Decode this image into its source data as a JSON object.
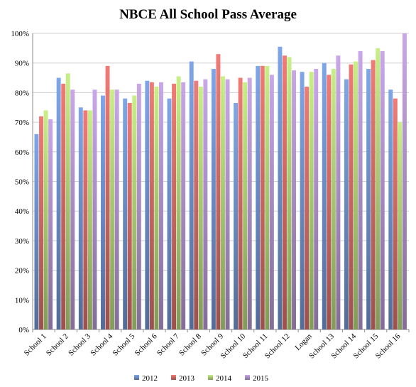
{
  "chart_data": {
    "type": "bar",
    "title": "NBCE All School Pass Average",
    "xlabel": "",
    "ylabel": "",
    "ylim": [
      0,
      100
    ],
    "y_ticks": [
      "0%",
      "10%",
      "20%",
      "30%",
      "40%",
      "50%",
      "60%",
      "70%",
      "80%",
      "90%",
      "100%"
    ],
    "grid": true,
    "legend_position": "bottom",
    "categories": [
      "School 1",
      "School 2",
      "School 3",
      "School 4",
      "School 5",
      "School 6",
      "School 7",
      "School 8",
      "School 9",
      "School 10",
      "School 11",
      "School 12",
      "Logan",
      "School 13",
      "School 14",
      "School 15",
      "School 16"
    ],
    "series": [
      {
        "name": "2012",
        "color": "#7ea6e8",
        "values": [
          66,
          85,
          75,
          79,
          78,
          84,
          78,
          90.5,
          88,
          76.5,
          89,
          95.5,
          87,
          90,
          84.5,
          88,
          81
        ]
      },
      {
        "name": "2013",
        "color": "#f07b76",
        "values": [
          72,
          83,
          74,
          89,
          76.5,
          83.5,
          83,
          84,
          93,
          85,
          89,
          92.5,
          82,
          86,
          89.5,
          91,
          78
        ]
      },
      {
        "name": "2014",
        "color": "#c8ef86",
        "values": [
          74,
          86.5,
          74,
          81,
          79,
          82,
          85.5,
          82,
          85.5,
          83.5,
          89,
          92,
          87,
          88,
          90.5,
          95,
          70
        ]
      },
      {
        "name": "2015",
        "color": "#c9a7e8",
        "values": [
          71,
          81,
          81,
          81,
          83,
          83.5,
          83.5,
          84.5,
          84.5,
          85,
          86,
          87.5,
          88,
          92.5,
          94,
          94,
          100
        ]
      }
    ]
  }
}
